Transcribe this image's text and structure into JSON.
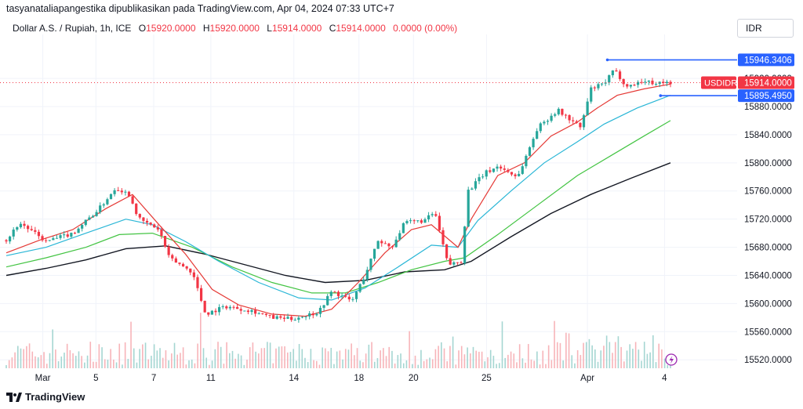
{
  "attribution": "tasyanataliapangestika dipublikasikan pada TradingView.com, Apr 04, 2024 07:33 UTC+7",
  "legend": {
    "symbol": "Dollar A.S. / Rupiah, 1h, ICE",
    "o_label": "O",
    "o_value": "15920.0000",
    "h_label": "H",
    "h_value": "15920.0000",
    "l_label": "L",
    "l_value": "15914.0000",
    "c_label": "C",
    "c_value": "15914.0000",
    "change": "0.0000 (0.00%)"
  },
  "currency_button": "IDR",
  "brand": "TradingView",
  "colors": {
    "up": "#26a69a",
    "down": "#f23645",
    "ema_red": "#e53935",
    "ema_cyan": "#29b6d6",
    "ema_green": "#43c443",
    "ema_black": "#131722",
    "marker": "#2962ff"
  },
  "chart_data": {
    "type": "candlestick",
    "ylim": [
      15508,
      15978
    ],
    "y_ticks": [
      15520,
      15560,
      15600,
      15640,
      15680,
      15720,
      15760,
      15800,
      15840,
      15880,
      15920
    ],
    "y_tick_labels": [
      "15520.0000",
      "15560.0000",
      "15600.0000",
      "15640.0000",
      "15680.0000",
      "15720.0000",
      "15760.0000",
      "15800.0000",
      "15840.0000",
      "15880.0000",
      "15920.0000"
    ],
    "x_labels": [
      {
        "t": 0.055,
        "label": "Mar"
      },
      {
        "t": 0.135,
        "label": "5"
      },
      {
        "t": 0.222,
        "label": "7"
      },
      {
        "t": 0.308,
        "label": "11"
      },
      {
        "t": 0.433,
        "label": "14"
      },
      {
        "t": 0.531,
        "label": "18"
      },
      {
        "t": 0.613,
        "label": "20"
      },
      {
        "t": 0.723,
        "label": "25"
      },
      {
        "t": 0.875,
        "label": "Apr"
      },
      {
        "t": 0.991,
        "label": "4"
      }
    ],
    "ohlc_key_points": [
      {
        "t": 0.0,
        "price": 15690
      },
      {
        "t": 0.02,
        "price": 15715
      },
      {
        "t": 0.06,
        "price": 15688
      },
      {
        "t": 0.1,
        "price": 15700
      },
      {
        "t": 0.14,
        "price": 15735
      },
      {
        "t": 0.165,
        "price": 15765
      },
      {
        "t": 0.185,
        "price": 15755
      },
      {
        "t": 0.2,
        "price": 15720
      },
      {
        "t": 0.23,
        "price": 15705
      },
      {
        "t": 0.245,
        "price": 15665
      },
      {
        "t": 0.28,
        "price": 15645
      },
      {
        "t": 0.3,
        "price": 15585
      },
      {
        "t": 0.33,
        "price": 15596
      },
      {
        "t": 0.37,
        "price": 15590
      },
      {
        "t": 0.4,
        "price": 15580
      },
      {
        "t": 0.43,
        "price": 15578
      },
      {
        "t": 0.47,
        "price": 15588
      },
      {
        "t": 0.49,
        "price": 15618
      },
      {
        "t": 0.52,
        "price": 15603
      },
      {
        "t": 0.54,
        "price": 15640
      },
      {
        "t": 0.56,
        "price": 15690
      },
      {
        "t": 0.58,
        "price": 15680
      },
      {
        "t": 0.6,
        "price": 15715
      },
      {
        "t": 0.63,
        "price": 15718
      },
      {
        "t": 0.645,
        "price": 15730
      },
      {
        "t": 0.665,
        "price": 15655
      },
      {
        "t": 0.685,
        "price": 15660
      },
      {
        "t": 0.695,
        "price": 15760
      },
      {
        "t": 0.72,
        "price": 15785
      },
      {
        "t": 0.74,
        "price": 15795
      },
      {
        "t": 0.77,
        "price": 15780
      },
      {
        "t": 0.8,
        "price": 15850
      },
      {
        "t": 0.83,
        "price": 15875
      },
      {
        "t": 0.865,
        "price": 15850
      },
      {
        "t": 0.88,
        "price": 15905
      },
      {
        "t": 0.9,
        "price": 15912
      },
      {
        "t": 0.915,
        "price": 15932
      },
      {
        "t": 0.935,
        "price": 15908
      },
      {
        "t": 0.955,
        "price": 15916
      },
      {
        "t": 0.975,
        "price": 15914
      },
      {
        "t": 1.0,
        "price": 15914
      }
    ],
    "ema_red": [
      {
        "t": 0.0,
        "price": 15672
      },
      {
        "t": 0.05,
        "price": 15690
      },
      {
        "t": 0.1,
        "price": 15705
      },
      {
        "t": 0.15,
        "price": 15735
      },
      {
        "t": 0.19,
        "price": 15755
      },
      {
        "t": 0.23,
        "price": 15712
      },
      {
        "t": 0.27,
        "price": 15670
      },
      {
        "t": 0.31,
        "price": 15620
      },
      {
        "t": 0.35,
        "price": 15598
      },
      {
        "t": 0.4,
        "price": 15585
      },
      {
        "t": 0.45,
        "price": 15582
      },
      {
        "t": 0.49,
        "price": 15592
      },
      {
        "t": 0.53,
        "price": 15630
      },
      {
        "t": 0.57,
        "price": 15672
      },
      {
        "t": 0.61,
        "price": 15705
      },
      {
        "t": 0.64,
        "price": 15712
      },
      {
        "t": 0.68,
        "price": 15680
      },
      {
        "t": 0.7,
        "price": 15720
      },
      {
        "t": 0.74,
        "price": 15782
      },
      {
        "t": 0.78,
        "price": 15800
      },
      {
        "t": 0.82,
        "price": 15838
      },
      {
        "t": 0.86,
        "price": 15858
      },
      {
        "t": 0.89,
        "price": 15878
      },
      {
        "t": 0.92,
        "price": 15896
      },
      {
        "t": 0.96,
        "price": 15905
      },
      {
        "t": 1.0,
        "price": 15912
      }
    ],
    "ema_cyan": [
      {
        "t": 0.0,
        "price": 15668
      },
      {
        "t": 0.06,
        "price": 15680
      },
      {
        "t": 0.12,
        "price": 15700
      },
      {
        "t": 0.18,
        "price": 15720
      },
      {
        "t": 0.22,
        "price": 15712
      },
      {
        "t": 0.27,
        "price": 15688
      },
      {
        "t": 0.32,
        "price": 15660
      },
      {
        "t": 0.38,
        "price": 15630
      },
      {
        "t": 0.44,
        "price": 15608
      },
      {
        "t": 0.49,
        "price": 15605
      },
      {
        "t": 0.54,
        "price": 15622
      },
      {
        "t": 0.59,
        "price": 15652
      },
      {
        "t": 0.64,
        "price": 15683
      },
      {
        "t": 0.68,
        "price": 15680
      },
      {
        "t": 0.71,
        "price": 15718
      },
      {
        "t": 0.76,
        "price": 15760
      },
      {
        "t": 0.81,
        "price": 15800
      },
      {
        "t": 0.86,
        "price": 15830
      },
      {
        "t": 0.9,
        "price": 15855
      },
      {
        "t": 0.95,
        "price": 15878
      },
      {
        "t": 1.0,
        "price": 15896
      }
    ],
    "ema_green": [
      {
        "t": 0.0,
        "price": 15652
      },
      {
        "t": 0.06,
        "price": 15665
      },
      {
        "t": 0.12,
        "price": 15680
      },
      {
        "t": 0.17,
        "price": 15698
      },
      {
        "t": 0.22,
        "price": 15700
      },
      {
        "t": 0.28,
        "price": 15680
      },
      {
        "t": 0.34,
        "price": 15652
      },
      {
        "t": 0.4,
        "price": 15630
      },
      {
        "t": 0.46,
        "price": 15615
      },
      {
        "t": 0.51,
        "price": 15615
      },
      {
        "t": 0.56,
        "price": 15630
      },
      {
        "t": 0.61,
        "price": 15648
      },
      {
        "t": 0.66,
        "price": 15660
      },
      {
        "t": 0.69,
        "price": 15665
      },
      {
        "t": 0.74,
        "price": 15698
      },
      {
        "t": 0.8,
        "price": 15740
      },
      {
        "t": 0.86,
        "price": 15782
      },
      {
        "t": 0.91,
        "price": 15810
      },
      {
        "t": 0.96,
        "price": 15838
      },
      {
        "t": 1.0,
        "price": 15860
      }
    ],
    "ema_black": [
      {
        "t": 0.0,
        "price": 15640
      },
      {
        "t": 0.06,
        "price": 15650
      },
      {
        "t": 0.12,
        "price": 15662
      },
      {
        "t": 0.18,
        "price": 15678
      },
      {
        "t": 0.24,
        "price": 15682
      },
      {
        "t": 0.3,
        "price": 15670
      },
      {
        "t": 0.36,
        "price": 15655
      },
      {
        "t": 0.42,
        "price": 15640
      },
      {
        "t": 0.48,
        "price": 15630
      },
      {
        "t": 0.54,
        "price": 15633
      },
      {
        "t": 0.6,
        "price": 15645
      },
      {
        "t": 0.66,
        "price": 15648
      },
      {
        "t": 0.7,
        "price": 15660
      },
      {
        "t": 0.76,
        "price": 15695
      },
      {
        "t": 0.82,
        "price": 15728
      },
      {
        "t": 0.88,
        "price": 15755
      },
      {
        "t": 0.94,
        "price": 15778
      },
      {
        "t": 1.0,
        "price": 15800
      }
    ],
    "marker_high": {
      "t0": 0.905,
      "t1": 1.08,
      "price": 15946.3406,
      "label": "15946.3406"
    },
    "marker_low": {
      "t0": 0.985,
      "t1": 1.08,
      "price": 15895.495,
      "label": "15895.4950"
    },
    "current_price": {
      "price": 15914,
      "label": "15914.0000",
      "symbol_label": "USDIDR"
    }
  }
}
